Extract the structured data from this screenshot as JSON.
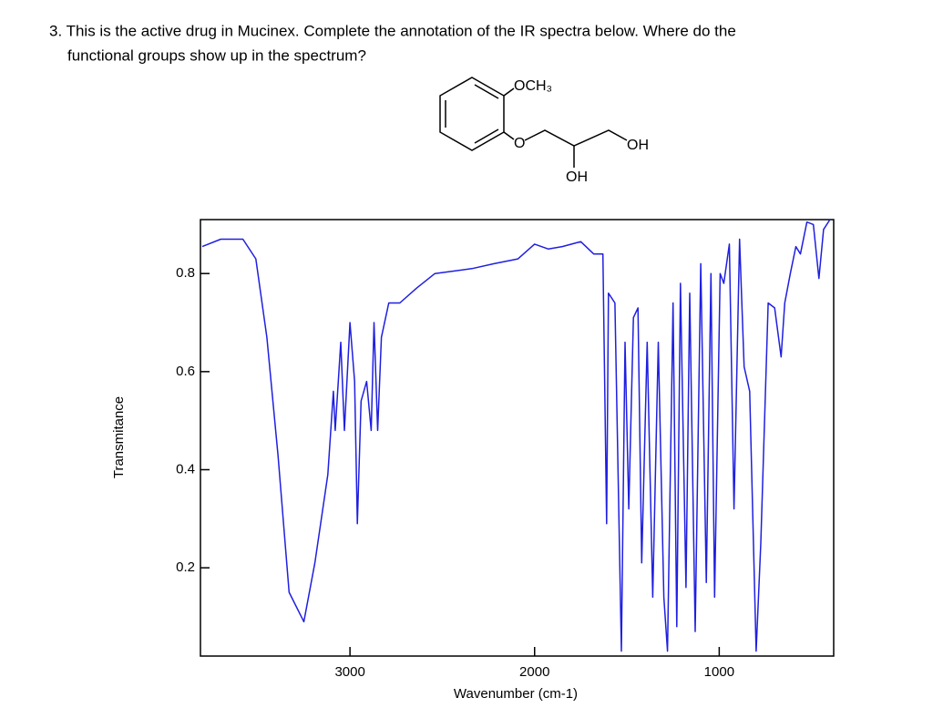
{
  "question": {
    "lines": [
      "3. This is the active drug in Mucinex. Complete the annotation of the IR spectra below. Where do the",
      "functional groups show up in the spectrum?"
    ]
  },
  "structure": {
    "labels": [
      "OCH₃",
      "O",
      "OH",
      "OH"
    ]
  },
  "chart_data": {
    "type": "line",
    "x_label": "Wavenumber (cm-1)",
    "y_label": "Transmitance",
    "color": "#1f1fe0",
    "x": [
      3800,
      3700,
      3580,
      3510,
      3450,
      3390,
      3330,
      3250,
      3190,
      3120,
      3090,
      3080,
      3050,
      3030,
      3000,
      2975,
      2960,
      2940,
      2910,
      2885,
      2870,
      2850,
      2830,
      2790,
      2730,
      2640,
      2540,
      2340,
      2220,
      2090,
      2000,
      1925,
      1850,
      1750,
      1680,
      1630,
      1610,
      1600,
      1565,
      1530,
      1510,
      1490,
      1465,
      1440,
      1420,
      1390,
      1360,
      1330,
      1300,
      1280,
      1250,
      1230,
      1210,
      1180,
      1160,
      1130,
      1100,
      1070,
      1045,
      1025,
      995,
      975,
      945,
      920,
      890,
      865,
      835,
      800,
      775,
      735,
      700,
      665,
      645,
      615,
      585,
      560,
      525,
      490,
      460,
      435,
      400
    ],
    "values": [
      0.855,
      0.87,
      0.87,
      0.83,
      0.67,
      0.43,
      0.15,
      0.09,
      0.21,
      0.39,
      0.56,
      0.48,
      0.66,
      0.48,
      0.7,
      0.58,
      0.29,
      0.54,
      0.58,
      0.48,
      0.7,
      0.48,
      0.67,
      0.74,
      0.74,
      0.77,
      0.8,
      0.81,
      0.82,
      0.83,
      0.86,
      0.85,
      0.855,
      0.865,
      0.84,
      0.84,
      0.29,
      0.76,
      0.74,
      0.03,
      0.66,
      0.32,
      0.71,
      0.73,
      0.21,
      0.66,
      0.14,
      0.66,
      0.14,
      0.03,
      0.74,
      0.08,
      0.78,
      0.16,
      0.76,
      0.07,
      0.82,
      0.17,
      0.8,
      0.14,
      0.8,
      0.78,
      0.86,
      0.32,
      0.87,
      0.61,
      0.56,
      0.03,
      0.25,
      0.74,
      0.73,
      0.63,
      0.74,
      0.8,
      0.855,
      0.84,
      0.905,
      0.9,
      0.79,
      0.89,
      0.91
    ],
    "xlim": [
      3810,
      380
    ],
    "ylim": [
      0.02,
      0.91
    ],
    "xticks": [
      3000,
      2000,
      1000
    ],
    "yticks": [
      0.2,
      0.4,
      0.6,
      0.8
    ]
  }
}
